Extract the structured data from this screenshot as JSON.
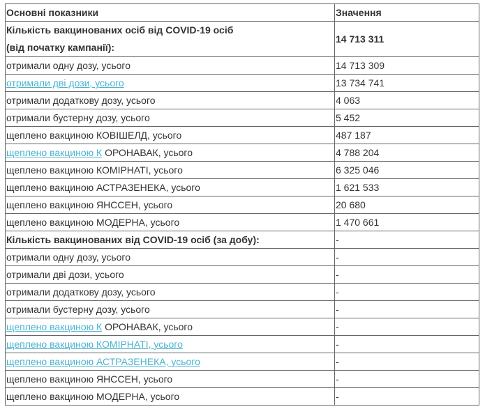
{
  "header": {
    "col1": "Основні показники",
    "col2": "Значення"
  },
  "campaign": {
    "label_line1": "Кількість вакцинованих осіб від COVID-19 осіб",
    "label_line2": "(від початку кампанії):",
    "value": "14 713 311"
  },
  "campaign_rows": [
    {
      "link": "",
      "text": "отримали одну дозу, усього",
      "value": "14 713 309"
    },
    {
      "link": "отримали дві дози, усього",
      "text": "",
      "value": "13 734 741"
    },
    {
      "link": "",
      "text": "отримали додаткову дозу, усього",
      "value": "4 063"
    },
    {
      "link": "",
      "text": "отримали бустерну дозу, усього",
      "value": "5 452"
    },
    {
      "link": "",
      "text": "щеплено вакциною КОВІШЕЛД, усього",
      "value": "487 187"
    },
    {
      "link": "щеплено вакциною К",
      "text": " ОРОНАВАК, усього",
      "value": "4 788 204"
    },
    {
      "link": "",
      "text": "щеплено вакциною КОМІРНАТІ, усього",
      "value": "6 325 046"
    },
    {
      "link": "",
      "text": "щеплено вакциною АСТРАЗЕНЕКА, усього",
      "value": "1 621 533"
    },
    {
      "link": "",
      "text": "щеплено вакциною ЯНССЕН, усього",
      "value": "20 680"
    },
    {
      "link": "",
      "text": "щеплено вакциною МОДЕРНА, усього",
      "value": "1 470 661"
    }
  ],
  "daily": {
    "label": "Кількість вакцинованих від COVID-19 осіб (за добу):",
    "value": "-"
  },
  "daily_rows": [
    {
      "link": "",
      "text": "отримали одну дозу, усього",
      "value": "-"
    },
    {
      "link": "",
      "text": "отримали дві дози, усього",
      "value": "-"
    },
    {
      "link": "",
      "text": "отримали додаткову дозу, усього",
      "value": "-"
    },
    {
      "link": "",
      "text": "отримали бустерну дозу, усього",
      "value": "-"
    },
    {
      "link": "щеплено вакциною К",
      "text": " ОРОНАВАК, усього",
      "value": "-"
    },
    {
      "link": "щеплено вакциною КОМІРНАТІ, усього",
      "text": "",
      "value": "-"
    },
    {
      "link": "щеплено вакциною АСТРАЗЕНЕКА, усього",
      "text": "",
      "value": "-"
    },
    {
      "link": "",
      "text": "щеплено вакциною ЯНССЕН, усього",
      "value": "-"
    },
    {
      "link": "",
      "text": "щеплено вакциною МОДЕРНА, усього",
      "value": "-"
    }
  ],
  "colors": {
    "link": "#4ab3d0",
    "text": "#333333",
    "border": "#666666"
  }
}
